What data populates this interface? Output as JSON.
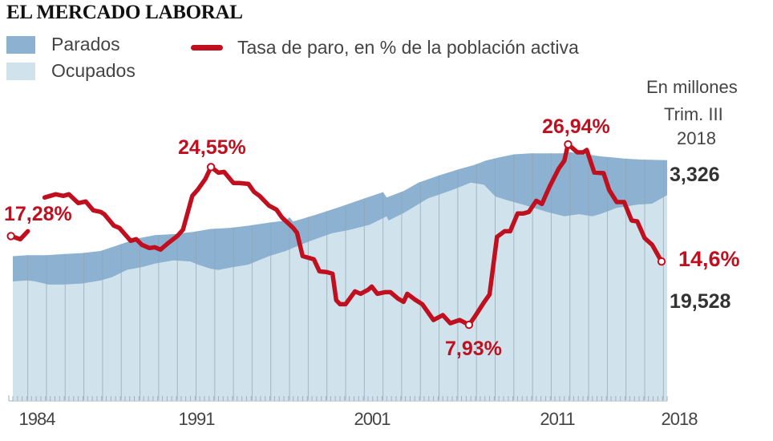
{
  "title": "EL MERCADO LABORAL",
  "colors": {
    "parados": "#8db2d1",
    "ocupados": "#d0e3ec",
    "rate_line": "#c0101f",
    "gridline": "#8ea3b3",
    "axis": "#9fb0bc",
    "text_dark": "#333333"
  },
  "legend": [
    {
      "name": "parados",
      "label": "Parados"
    },
    {
      "name": "ocupados",
      "label": "Ocupados"
    },
    {
      "name": "rate",
      "label": "Tasa de paro, en % de la población activa"
    }
  ],
  "side_notes": {
    "units": "En millones",
    "period_line1": "Trim. III",
    "period_line2": "2018"
  },
  "chart_data": {
    "type": "area",
    "title": "EL MERCADO LABORAL",
    "xlabel": "",
    "ylabel": "En millones",
    "x_range": [
      1983.5,
      2018.75
    ],
    "y_range_millions": [
      0,
      38
    ],
    "y_range_rate_percent": [
      0,
      38
    ],
    "grid": "vertical yearly lines",
    "legend_position": "top-left",
    "x_tick_labels": [
      "1984",
      "1991",
      "2001",
      "2011",
      "2018"
    ],
    "x_ticks": [
      1984,
      1991,
      2001,
      2011,
      2018
    ],
    "series": [
      {
        "name": "Parados + Ocupados (población activa)",
        "kind": "area-top-total",
        "unit": "millones",
        "points": [
          [
            1983.5,
            13.7
          ],
          [
            1984.3,
            13.8
          ],
          [
            1985.3,
            13.8
          ],
          [
            1986.2,
            13.9
          ],
          [
            1987.2,
            14.0
          ],
          [
            1988.2,
            14.2
          ],
          [
            1989.2,
            14.8
          ],
          [
            1990.2,
            15.4
          ],
          [
            1991.1,
            15.7
          ],
          [
            1992.1,
            15.8
          ],
          [
            1993.1,
            16.0
          ],
          [
            1994.1,
            16.3
          ],
          [
            1995.1,
            16.4
          ],
          [
            1996.1,
            16.6
          ],
          [
            1997.2,
            16.9
          ],
          [
            1998.1,
            17.1
          ],
          [
            1998.3,
            17.4
          ],
          [
            1998.5,
            17.0
          ],
          [
            1999.8,
            17.7
          ],
          [
            2001.0,
            18.4
          ],
          [
            2002.3,
            19.2
          ],
          [
            2003.3,
            19.8
          ],
          [
            2003.5,
            19.3
          ],
          [
            2004.4,
            19.9
          ],
          [
            2005.2,
            20.7
          ],
          [
            2006.3,
            21.4
          ],
          [
            2007.4,
            22.0
          ],
          [
            2008.2,
            22.4
          ],
          [
            2008.8,
            22.8
          ],
          [
            2009.5,
            23.1
          ],
          [
            2010.3,
            23.4
          ],
          [
            2011.2,
            23.5
          ],
          [
            2012.0,
            23.5
          ],
          [
            2012.9,
            23.5
          ],
          [
            2013.3,
            23.6
          ],
          [
            2015.0,
            23.2
          ],
          [
            2016.2,
            23.0
          ],
          [
            2017.1,
            22.9
          ],
          [
            2018.5,
            22.85
          ]
        ]
      },
      {
        "name": "Ocupados",
        "kind": "area-top-employed",
        "unit": "millones",
        "points": [
          [
            1983.5,
            11.3
          ],
          [
            1984.3,
            11.4
          ],
          [
            1984.7,
            11.3
          ],
          [
            1985.4,
            11.0
          ],
          [
            1986.2,
            11.0
          ],
          [
            1987.2,
            11.1
          ],
          [
            1988.2,
            11.4
          ],
          [
            1988.8,
            11.7
          ],
          [
            1989.6,
            12.4
          ],
          [
            1990.5,
            12.7
          ],
          [
            1991.1,
            13.0
          ],
          [
            1992.1,
            13.3
          ],
          [
            1993.0,
            13.2
          ],
          [
            1993.4,
            12.9
          ],
          [
            1994.1,
            12.5
          ],
          [
            1994.5,
            12.4
          ],
          [
            1995.1,
            12.6
          ],
          [
            1996.1,
            12.9
          ],
          [
            1997.2,
            13.7
          ],
          [
            1998.1,
            14.2
          ],
          [
            1998.9,
            14.8
          ],
          [
            1999.8,
            15.4
          ],
          [
            2000.6,
            15.9
          ],
          [
            2001.5,
            16.2
          ],
          [
            2002.6,
            16.7
          ],
          [
            2003.5,
            17.5
          ],
          [
            2003.6,
            17.1
          ],
          [
            2004.4,
            17.8
          ],
          [
            2005.7,
            19.2
          ],
          [
            2007.0,
            20.0
          ],
          [
            2008.0,
            20.7
          ],
          [
            2008.7,
            20.5
          ],
          [
            2009.3,
            19.4
          ],
          [
            2010.0,
            19.0
          ],
          [
            2010.8,
            18.6
          ],
          [
            2012.1,
            17.9
          ],
          [
            2013.0,
            17.5
          ],
          [
            2013.8,
            17.7
          ],
          [
            2014.5,
            17.5
          ],
          [
            2014.9,
            17.7
          ],
          [
            2015.8,
            18.3
          ],
          [
            2016.9,
            18.6
          ],
          [
            2017.7,
            18.7
          ],
          [
            2018.5,
            19.528
          ]
        ]
      },
      {
        "name": "Tasa de paro",
        "kind": "line",
        "unit": "% de la población activa",
        "segments": [
          [
            [
              1983.4,
              17.28
            ],
            [
              1983.9,
              16.94
            ],
            [
              1984.3,
              17.79
            ]
          ],
          [
            [
              1985.2,
              21.34
            ],
            [
              1985.8,
              21.68
            ],
            [
              1986.2,
              21.51
            ],
            [
              1986.5,
              21.68
            ],
            [
              1987.0,
              20.75
            ],
            [
              1987.4,
              20.92
            ],
            [
              1987.8,
              19.99
            ],
            [
              1988.2,
              19.82
            ],
            [
              1988.4,
              19.57
            ],
            [
              1988.9,
              18.39
            ],
            [
              1989.2,
              18.13
            ],
            [
              1989.8,
              16.78
            ],
            [
              1990.1,
              16.95
            ],
            [
              1990.4,
              16.36
            ],
            [
              1990.8,
              16.02
            ],
            [
              1991.1,
              16.1
            ],
            [
              1991.4,
              15.85
            ],
            [
              1991.8,
              16.53
            ],
            [
              1992.3,
              17.29
            ],
            [
              1992.6,
              17.96
            ],
            [
              1993.1,
              21.51
            ],
            [
              1993.4,
              22.19
            ],
            [
              1993.8,
              23.29
            ],
            [
              1994.1,
              24.55
            ],
            [
              1994.5,
              23.95
            ],
            [
              1994.8,
              24.04
            ],
            [
              1995.3,
              22.86
            ],
            [
              1995.6,
              22.86
            ],
            [
              1996.1,
              22.77
            ],
            [
              1996.4,
              21.93
            ],
            [
              1996.7,
              21.51
            ],
            [
              1997.2,
              20.49
            ],
            [
              1997.6,
              20.07
            ],
            [
              1997.9,
              19.23
            ],
            [
              1998.5,
              18.13
            ],
            [
              1998.7,
              17.62
            ],
            [
              1999.0,
              15.17
            ],
            [
              1999.3,
              15.0
            ],
            [
              1999.6,
              14.83
            ],
            [
              1999.9,
              13.56
            ],
            [
              2000.3,
              13.48
            ],
            [
              2000.6,
              13.31
            ],
            [
              2000.8,
              10.52
            ],
            [
              2001.0,
              10.1
            ],
            [
              2001.3,
              10.1
            ],
            [
              2001.8,
              11.45
            ],
            [
              2002.1,
              11.2
            ],
            [
              2002.5,
              11.62
            ],
            [
              2002.7,
              11.96
            ],
            [
              2003.0,
              11.2
            ],
            [
              2003.4,
              11.37
            ],
            [
              2003.7,
              11.37
            ],
            [
              2004.1,
              10.69
            ],
            [
              2004.4,
              10.35
            ],
            [
              2004.6,
              11.2
            ],
            [
              2005.0,
              10.6
            ],
            [
              2005.4,
              10.1
            ],
            [
              2006.0,
              8.44
            ],
            [
              2006.5,
              8.95
            ],
            [
              2006.9,
              8.1
            ],
            [
              2007.4,
              8.44
            ],
            [
              2007.9,
              7.93
            ],
            [
              2008.2,
              8.77
            ],
            [
              2008.7,
              10.29
            ],
            [
              2009.0,
              11.12
            ],
            [
              2009.4,
              17.2
            ],
            [
              2009.8,
              17.79
            ],
            [
              2010.1,
              17.79
            ],
            [
              2010.5,
              19.65
            ],
            [
              2010.8,
              19.65
            ],
            [
              2011.1,
              19.82
            ],
            [
              2011.5,
              21.0
            ],
            [
              2011.8,
              20.66
            ],
            [
              2012.2,
              22.44
            ],
            [
              2012.7,
              24.38
            ],
            [
              2013.0,
              25.22
            ],
            [
              2013.2,
              26.94
            ],
            [
              2013.7,
              26.1
            ],
            [
              2014.0,
              26.1
            ],
            [
              2014.2,
              26.35
            ],
            [
              2014.6,
              23.98
            ],
            [
              2015.1,
              23.9
            ],
            [
              2015.4,
              22.13
            ],
            [
              2015.8,
              20.86
            ],
            [
              2016.2,
              20.86
            ],
            [
              2016.6,
              18.92
            ],
            [
              2016.9,
              18.83
            ],
            [
              2017.3,
              17.05
            ],
            [
              2017.7,
              16.36
            ],
            [
              2018.2,
              14.6
            ]
          ]
        ]
      }
    ],
    "annotations": [
      {
        "label": "17,28%",
        "x": 1983.4,
        "value": 17.28
      },
      {
        "label": "24,55%",
        "x": 1994.1,
        "value": 24.55
      },
      {
        "label": "7,93%",
        "x": 2007.9,
        "value": 7.93
      },
      {
        "label": "26,94%",
        "x": 2013.2,
        "value": 26.94
      },
      {
        "label": "14,6%",
        "x": 2018.2,
        "value": 14.6
      }
    ],
    "end_values": {
      "parados_millones": "3,326",
      "ocupados_millones": "19,528",
      "tasa_paro": "14,6%"
    }
  },
  "labels": {
    "rate_start": "17,28%",
    "rate_peak_1994": "24,55%",
    "rate_min_2007": "7,93%",
    "rate_peak_2013": "26,94%",
    "rate_end": "14,6%",
    "parados_end": "3,326",
    "ocupados_end": "19,528"
  }
}
